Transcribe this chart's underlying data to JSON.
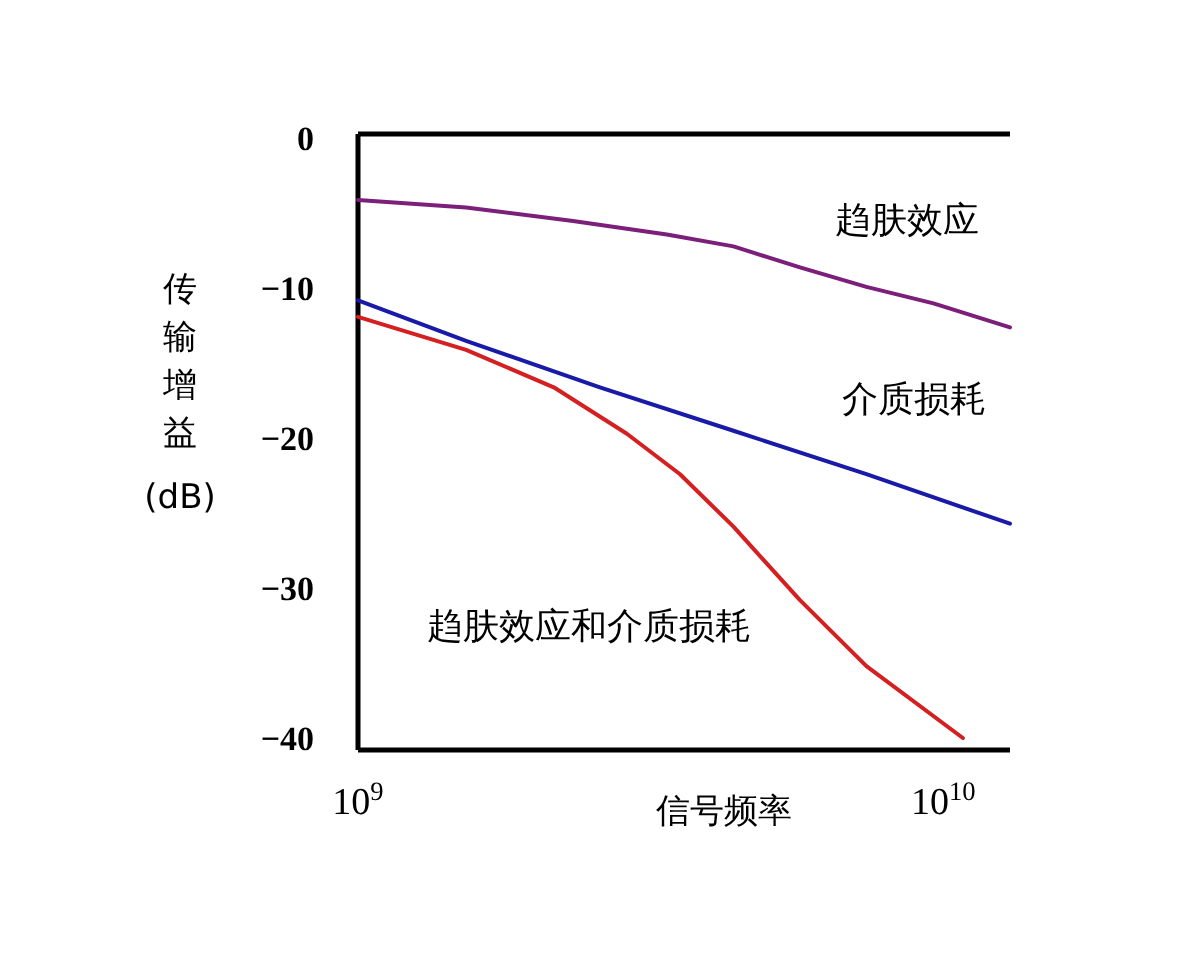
{
  "chart_data": {
    "type": "line",
    "xlabel": "信号频率",
    "ylabel": "传输增益(dB)",
    "log": "x",
    "xlim": [
      1000000000.0,
      13000000000.0
    ],
    "xticks": [
      {
        "value": 1000000000.0,
        "label": "10$^{9}$"
      },
      {
        "value": 10000000000.0,
        "label": "10$^{10}$"
      }
    ],
    "ylim": [
      -40.8,
      0.3
    ],
    "yticks": [
      0,
      -10,
      -20,
      -30,
      -40
    ],
    "grid": false,
    "marker": "none",
    "line_style": "solid",
    "series": [
      {
        "name": "趋肤效应",
        "color": "#7b1f7b",
        "x": [
          1000000000.0,
          1530000000.0,
          2330000000.0,
          3370000000.0,
          4380000000.0,
          5690000000.0,
          7390000000.0,
          9620000000.0,
          13000000000.0
        ],
        "values": [
          -4.1,
          -4.6,
          -5.5,
          -6.4,
          -7.2,
          -8.6,
          -9.9,
          -11.0,
          -12.6
        ]
      },
      {
        "name": "介质损耗",
        "color": "#1a1aa8",
        "x": [
          1000000000.0,
          1530000000.0,
          2590000000.0,
          4380000000.0,
          7390000000.0,
          13000000000.0
        ],
        "values": [
          -10.8,
          -13.5,
          -16.6,
          -19.5,
          -22.4,
          -25.7
        ]
      },
      {
        "name": "趋肤效应和介质损耗",
        "color": "#d42020",
        "x": [
          1000000000.0,
          1530000000.0,
          2160000000.0,
          2880000000.0,
          3550000000.0,
          4380000000.0,
          5690000000.0,
          7390000000.0,
          10800000000.0
        ],
        "values": [
          -11.9,
          -14.1,
          -16.6,
          -19.7,
          -22.4,
          -25.9,
          -30.8,
          -35.2,
          -40
        ]
      }
    ]
  }
}
